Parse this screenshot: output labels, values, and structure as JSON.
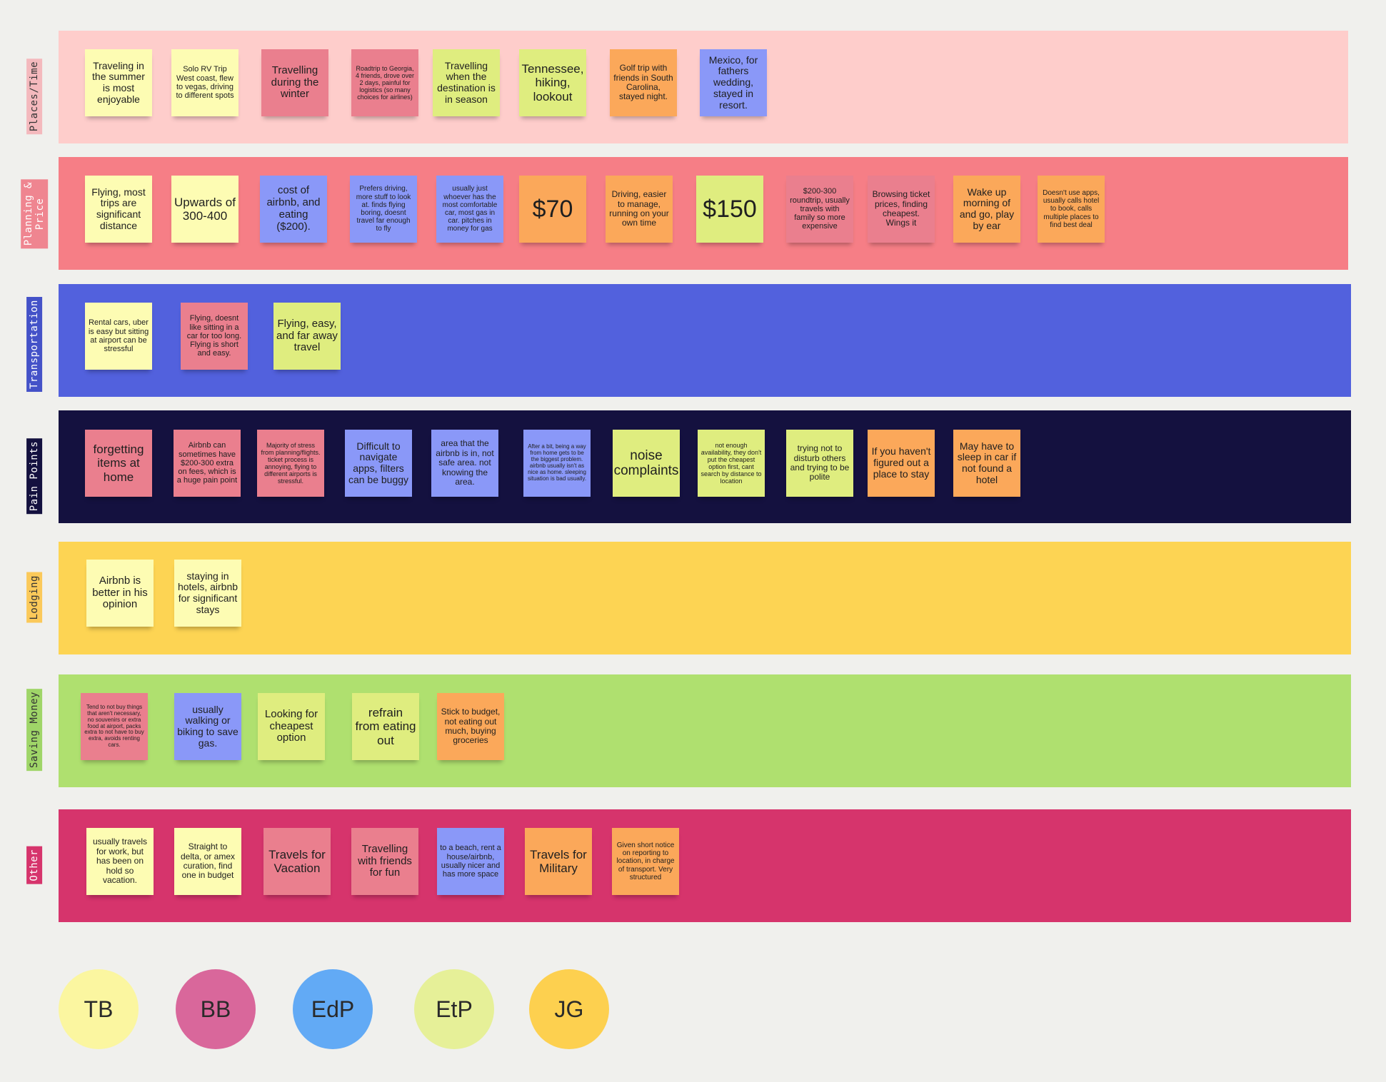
{
  "colors": {
    "background": "#f0f0ed",
    "note_yellow": "#fdfcb3",
    "note_pink": "#ea7f8e",
    "note_blue": "#8a98f8",
    "note_lime": "#dfed7f",
    "note_orange": "#fba85a"
  },
  "lanes": [
    {
      "label": "Places/Time",
      "band_color": "#fecdcb",
      "label_bg": "#f4b9bd",
      "label_color": "#333333",
      "notes": [
        {
          "text": "Traveling in the summer is most enjoyable",
          "color": "yellow"
        },
        {
          "text": "Solo RV Trip West coast, flew to vegas, driving to different spots",
          "color": "yellow"
        },
        {
          "text": "Travelling during the winter",
          "color": "pink"
        },
        {
          "text": "Roadtrip to Georgia, 4 friends, drove over 2 days, painful for logistics (so many choices for airlines)",
          "color": "pink"
        },
        {
          "text": "Travelling when the destination is in season",
          "color": "lime"
        },
        {
          "text": "Tennessee, hiking, lookout",
          "color": "lime"
        },
        {
          "text": "Golf trip with friends in South Carolina, stayed night.",
          "color": "orange"
        },
        {
          "text": "Mexico, for fathers wedding, stayed in resort.",
          "color": "blue"
        }
      ]
    },
    {
      "label": "Planning &\nPrice",
      "band_color": "#f67e86",
      "label_bg": "#ef8590",
      "label_color": "#ffffff",
      "notes": [
        {
          "text": "Flying, most trips are significant distance",
          "color": "yellow"
        },
        {
          "text": "Upwards of 300-400",
          "color": "yellow"
        },
        {
          "text": "cost of airbnb, and eating ($200).",
          "color": "blue"
        },
        {
          "text": "Prefers driving, more stuff to look at. finds flying boring, doesnt travel far enough to fly",
          "color": "blue"
        },
        {
          "text": "usually just whoever has the most comfortable car, most gas in car. pitches in money for gas",
          "color": "blue"
        },
        {
          "text": "$70",
          "color": "orange"
        },
        {
          "text": "Driving, easier to manage, running on your own time",
          "color": "orange"
        },
        {
          "text": "$150",
          "color": "lime"
        },
        {
          "text": "$200-300 roundtrip, usually travels with family so more expensive",
          "color": "pink"
        },
        {
          "text": "Browsing ticket prices, finding cheapest. Wings it",
          "color": "pink"
        },
        {
          "text": "Wake up morning of and go, play by ear",
          "color": "orange"
        },
        {
          "text": "Doesn't use apps, usually calls hotel to book, calls multiple places to find best deal",
          "color": "orange"
        }
      ]
    },
    {
      "label": "Transportation",
      "band_color": "#5261dd",
      "label_bg": "#4452c8",
      "label_color": "#ffffff",
      "notes": [
        {
          "text": "Rental cars, uber is easy but sitting at airport can be stressful",
          "color": "yellow"
        },
        {
          "text": "Flying, doesnt like sitting in a car for too long. Flying is short and easy.",
          "color": "pink"
        },
        {
          "text": "Flying, easy, and far away travel",
          "color": "lime"
        }
      ]
    },
    {
      "label": "Pain Points",
      "band_color": "#14113f",
      "label_bg": "#14113f",
      "label_color": "#ffffff",
      "notes": [
        {
          "text": "forgetting items at home",
          "color": "pink"
        },
        {
          "text": "Airbnb can sometimes have $200-300 extra on fees, which is a huge pain point",
          "color": "pink"
        },
        {
          "text": "Majority of stress from planning/flights. ticket process is annoying, flying to different airports is stressful.",
          "color": "pink"
        },
        {
          "text": "Difficult to navigate apps, filters can be buggy",
          "color": "blue"
        },
        {
          "text": "area that the airbnb is in, not safe area. not knowing the area.",
          "color": "blue"
        },
        {
          "text": "After a bit, being a way from home gets to be the biggest problem. airbnb usually isn't as nice as home. sleeping situation is bad usually.",
          "color": "blue"
        },
        {
          "text": "noise complaints",
          "color": "lime"
        },
        {
          "text": "not enough availability, they don't put the cheapest option first, cant search by distance to location",
          "color": "lime"
        },
        {
          "text": "trying not to disturb others and trying to be polite",
          "color": "lime"
        },
        {
          "text": "If you haven't figured out a place to stay",
          "color": "orange"
        },
        {
          "text": "May have to sleep in car if not found a hotel",
          "color": "orange"
        }
      ]
    },
    {
      "label": "Lodging",
      "band_color": "#fdd453",
      "label_bg": "#fbc95a",
      "label_color": "#333333",
      "notes": [
        {
          "text": "Airbnb is better in his opinion",
          "color": "yellow"
        },
        {
          "text": "staying in hotels, airbnb for significant stays",
          "color": "yellow"
        }
      ]
    },
    {
      "label": "Saving Money",
      "band_color": "#afe06f",
      "label_bg": "#9fd568",
      "label_color": "#333333",
      "notes": [
        {
          "text": "Tend to not buy things that aren't necessary, no souvenirs or extra food at airport, packs extra to not have to buy extra, avoids renting cars.",
          "color": "pink"
        },
        {
          "text": "usually walking or biking to save gas.",
          "color": "blue"
        },
        {
          "text": "Looking for cheapest option",
          "color": "lime"
        },
        {
          "text": "refrain from eating out",
          "color": "lime"
        },
        {
          "text": "Stick to budget, not eating out much, buying groceries",
          "color": "orange"
        }
      ]
    },
    {
      "label": "Other",
      "band_color": "#d6346c",
      "label_bg": "#d6346c",
      "label_color": "#ffffff",
      "notes": [
        {
          "text": "usually travels for work, but has been on hold so vacation.",
          "color": "yellow"
        },
        {
          "text": "Straight to delta, or amex curation, find one in budget",
          "color": "yellow"
        },
        {
          "text": "Travels for Vacation",
          "color": "pink"
        },
        {
          "text": "Travelling with friends for fun",
          "color": "pink"
        },
        {
          "text": "to a beach, rent a house/airbnb, usually nicer and has more space",
          "color": "blue"
        },
        {
          "text": "Travels for Military",
          "color": "orange"
        },
        {
          "text": "Given short notice on reporting to location, in charge of transport. Very structured",
          "color": "orange"
        }
      ]
    }
  ],
  "participants": [
    {
      "initials": "TB",
      "color": "#fbf6a0"
    },
    {
      "initials": "BB",
      "color": "#d9679b"
    },
    {
      "initials": "EdP",
      "color": "#62aaf5"
    },
    {
      "initials": "EtP",
      "color": "#e6f098"
    },
    {
      "initials": "JG",
      "color": "#fdd04f"
    }
  ]
}
